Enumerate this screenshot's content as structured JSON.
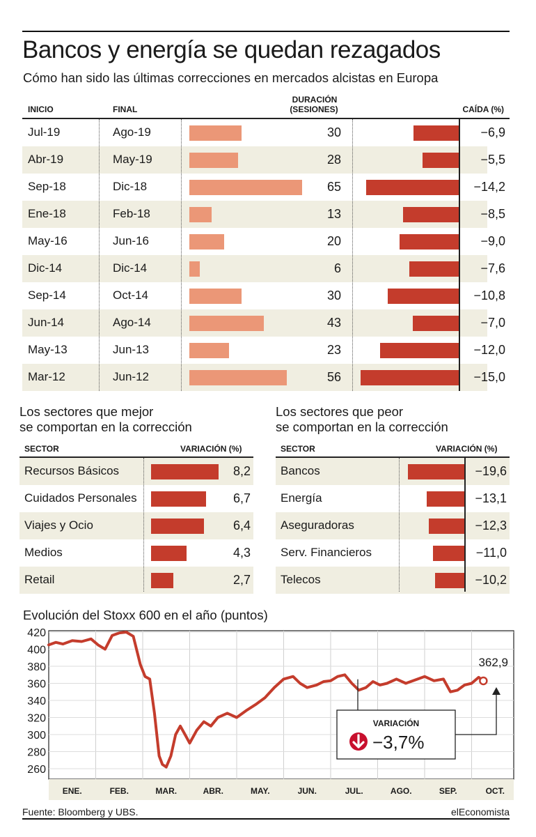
{
  "title": "Bancos y energía se quedan rezagados",
  "subtitle": "Cómo han sido las últimas correcciones en mercados alcistas en Europa",
  "corrections": {
    "headers": {
      "start": "INICIO",
      "end": "FINAL",
      "duration_line1": "DURACIÓN",
      "duration_line2": "(SESIONES)",
      "fall": "CAÍDA (%)"
    },
    "rows": [
      {
        "start": "Jul-19",
        "end": "Ago-19",
        "sessions": 30,
        "sessions_label": "30",
        "fall": -6.9,
        "fall_label": "−6,9"
      },
      {
        "start": "Abr-19",
        "end": "May-19",
        "sessions": 28,
        "sessions_label": "28",
        "fall": -5.5,
        "fall_label": "−5,5"
      },
      {
        "start": "Sep-18",
        "end": "Dic-18",
        "sessions": 65,
        "sessions_label": "65",
        "fall": -14.2,
        "fall_label": "−14,2"
      },
      {
        "start": "Ene-18",
        "end": "Feb-18",
        "sessions": 13,
        "sessions_label": "13",
        "fall": -8.5,
        "fall_label": "−8,5"
      },
      {
        "start": "May-16",
        "end": "Jun-16",
        "sessions": 20,
        "sessions_label": "20",
        "fall": -9.0,
        "fall_label": "−9,0"
      },
      {
        "start": "Dic-14",
        "end": "Dic-14",
        "sessions": 6,
        "sessions_label": "6",
        "fall": -7.6,
        "fall_label": "−7,6"
      },
      {
        "start": "Sep-14",
        "end": "Oct-14",
        "sessions": 30,
        "sessions_label": "30",
        "fall": -10.8,
        "fall_label": "−10,8"
      },
      {
        "start": "Jun-14",
        "end": "Ago-14",
        "sessions": 43,
        "sessions_label": "43",
        "fall": -7.0,
        "fall_label": "−7,0"
      },
      {
        "start": "May-13",
        "end": "Jun-13",
        "sessions": 23,
        "sessions_label": "23",
        "fall": -12.0,
        "fall_label": "−12,0"
      },
      {
        "start": "Mar-12",
        "end": "Jun-12",
        "sessions": 56,
        "sessions_label": "56",
        "fall": -15.0,
        "fall_label": "−15,0"
      }
    ]
  },
  "best_sectors": {
    "title_line1": "Los sectores que mejor",
    "title_line2": "se comportan en la corrección",
    "header_sector": "SECTOR",
    "header_change": "VARIACIÓN (%)",
    "items": [
      {
        "name": "Recursos Básicos",
        "value": 8.2,
        "label": "8,2"
      },
      {
        "name": "Cuidados Personales",
        "value": 6.7,
        "label": "6,7"
      },
      {
        "name": "Viajes y Ocio",
        "value": 6.4,
        "label": "6,4"
      },
      {
        "name": "Medios",
        "value": 4.3,
        "label": "4,3"
      },
      {
        "name": "Retail",
        "value": 2.7,
        "label": "2,7"
      }
    ]
  },
  "worst_sectors": {
    "title_line1": "Los sectores que peor",
    "title_line2": "se comportan en la corrección",
    "header_sector": "SECTOR",
    "header_change": "VARIACIÓN (%)",
    "items": [
      {
        "name": "Bancos",
        "value": -19.6,
        "label": "−19,6"
      },
      {
        "name": "Energía",
        "value": -13.1,
        "label": "−13,1"
      },
      {
        "name": "Aseguradoras",
        "value": -12.3,
        "label": "−12,3"
      },
      {
        "name": "Serv. Financieros",
        "value": -11.0,
        "label": "−11,0"
      },
      {
        "name": "Telecos",
        "value": -10.2,
        "label": "−10,2"
      }
    ]
  },
  "chart_data": {
    "type": "line",
    "title": "Evolución del Stoxx 600 en el año (puntos)",
    "ylim": [
      250,
      425
    ],
    "yticks": [
      420,
      400,
      380,
      360,
      340,
      320,
      300,
      280,
      260
    ],
    "months": [
      "ENE.",
      "FEB.",
      "MAR.",
      "ABR.",
      "MAY.",
      "JUN.",
      "JUL.",
      "AGO.",
      "SEP.",
      "OCT."
    ],
    "x_unit": "months since 1 Jan",
    "series": [
      {
        "name": "Stoxx 600",
        "x": [
          0,
          0.15,
          0.3,
          0.5,
          0.7,
          0.9,
          1.05,
          1.2,
          1.35,
          1.5,
          1.65,
          1.8,
          1.95,
          2.05,
          2.15,
          2.25,
          2.35,
          2.42,
          2.5,
          2.6,
          2.7,
          2.8,
          2.9,
          3.0,
          3.15,
          3.3,
          3.45,
          3.6,
          3.8,
          4.0,
          4.2,
          4.4,
          4.6,
          4.8,
          5.0,
          5.2,
          5.35,
          5.5,
          5.7,
          5.85,
          6.0,
          6.15,
          6.3,
          6.45,
          6.6,
          6.75,
          6.9,
          7.05,
          7.2,
          7.4,
          7.6,
          7.8,
          8.0,
          8.2,
          8.4,
          8.55,
          8.7,
          8.85,
          9.0,
          9.15,
          9.25
        ],
        "values": [
          405,
          408,
          406,
          410,
          409,
          412,
          405,
          400,
          416,
          419,
          420,
          415,
          382,
          368,
          365,
          325,
          275,
          265,
          262,
          275,
          300,
          310,
          300,
          290,
          305,
          315,
          310,
          320,
          325,
          320,
          328,
          335,
          343,
          355,
          365,
          368,
          360,
          355,
          358,
          362,
          363,
          368,
          370,
          360,
          352,
          355,
          362,
          358,
          360,
          365,
          360,
          364,
          368,
          363,
          365,
          350,
          352,
          358,
          360,
          367,
          362.9
        ]
      }
    ],
    "last_value_label": "362,9",
    "variation_label": "VARIACIÓN",
    "variation_value": "−3,7%",
    "variation_pct": -3.7
  },
  "footer": {
    "source": "Fuente: Bloomberg y UBS.",
    "brand": "elEconomista"
  },
  "colors": {
    "duration_bar": "#eb9777",
    "fall_bar": "#c43c2c",
    "row_band": "#f0eee1",
    "line": "#c43c2c"
  }
}
